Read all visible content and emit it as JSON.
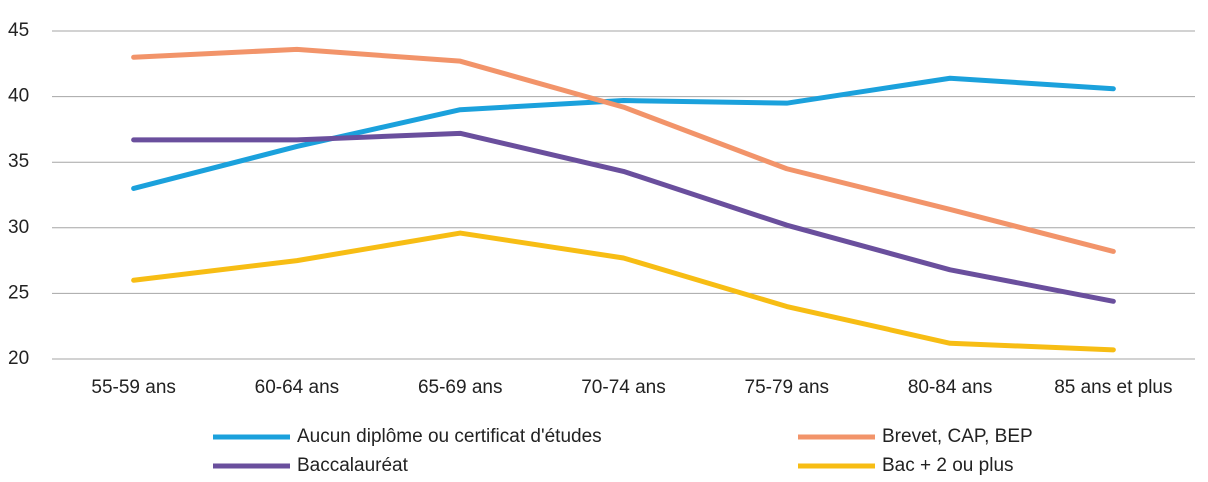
{
  "chart_data": {
    "type": "line",
    "categories": [
      "55-59 ans",
      "60-64 ans",
      "65-69 ans",
      "70-74 ans",
      "75-79 ans",
      "80-84 ans",
      "85 ans et plus"
    ],
    "series": [
      {
        "name": "Aucun diplôme ou certificat d'études",
        "color": "#1ba1dc",
        "values": [
          33.0,
          36.2,
          39.0,
          39.7,
          39.5,
          41.4,
          40.6
        ]
      },
      {
        "name": "Brevet, CAP, BEP",
        "color": "#f2946a",
        "values": [
          43.0,
          43.6,
          42.7,
          39.2,
          34.5,
          31.4,
          28.2
        ]
      },
      {
        "name": "Baccalauréat",
        "color": "#6a4f9d",
        "values": [
          36.7,
          36.7,
          37.2,
          34.3,
          30.2,
          26.8,
          24.4
        ]
      },
      {
        "name": "Bac + 2 ou plus",
        "color": "#f7bd14",
        "values": [
          26.0,
          27.5,
          29.6,
          27.7,
          24.0,
          21.2,
          20.7
        ]
      }
    ],
    "ylim": [
      20,
      45
    ],
    "yticks": [
      20,
      25,
      30,
      35,
      40,
      45
    ],
    "grid": true,
    "legend": "bottom"
  }
}
